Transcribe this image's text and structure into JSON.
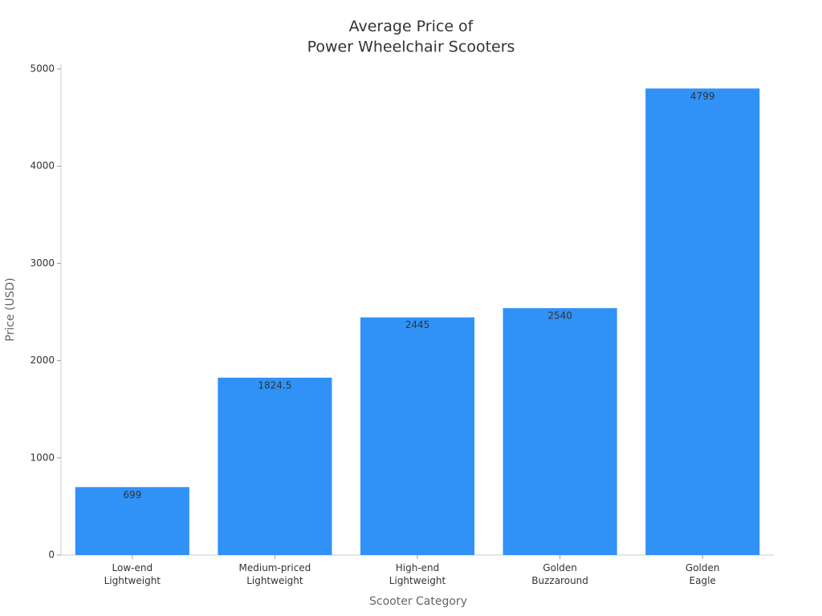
{
  "chart_data": {
    "type": "bar",
    "title": "Average Price of\nPower Wheelchair Scooters",
    "x_label": "Scooter Category",
    "y_label": "Price (USD)",
    "categories": [
      "Low-end\nLightweight",
      "Medium-priced\nLightweight",
      "High-end\nLightweight",
      "Golden\nBuzzaround",
      "Golden\nEagle"
    ],
    "values": [
      699,
      1824.5,
      2445,
      2540,
      4799
    ],
    "color": "#3091f7",
    "ylim": [
      0,
      5000
    ],
    "yticks": [
      0,
      1000,
      2000,
      3000,
      4000,
      5000
    ],
    "grid": false
  }
}
